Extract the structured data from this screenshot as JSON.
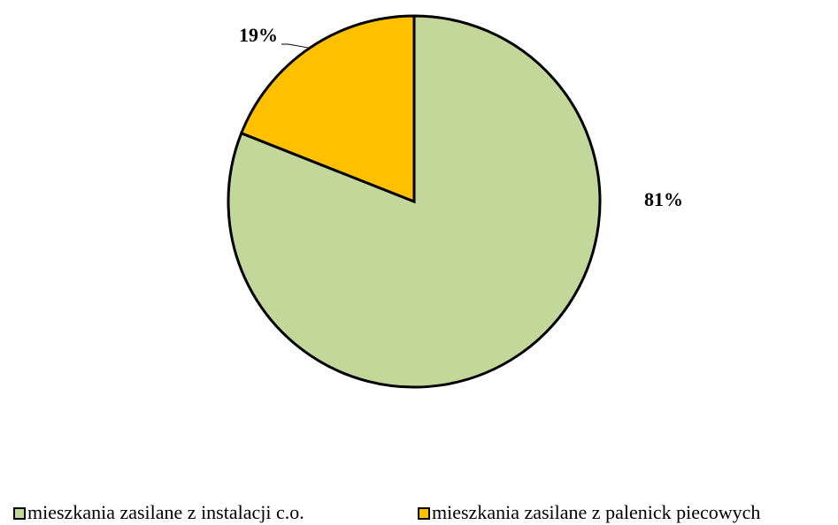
{
  "chart_data": {
    "type": "pie",
    "categories": [
      "mieszkania zasilane z instalacji c.o.",
      "mieszkania zasilane z palenick piecowych"
    ],
    "values": [
      81,
      19
    ],
    "value_labels": [
      "81%",
      "19%"
    ],
    "colors": [
      "#c4d79b",
      "#ffc000"
    ],
    "legend": "bottom"
  }
}
